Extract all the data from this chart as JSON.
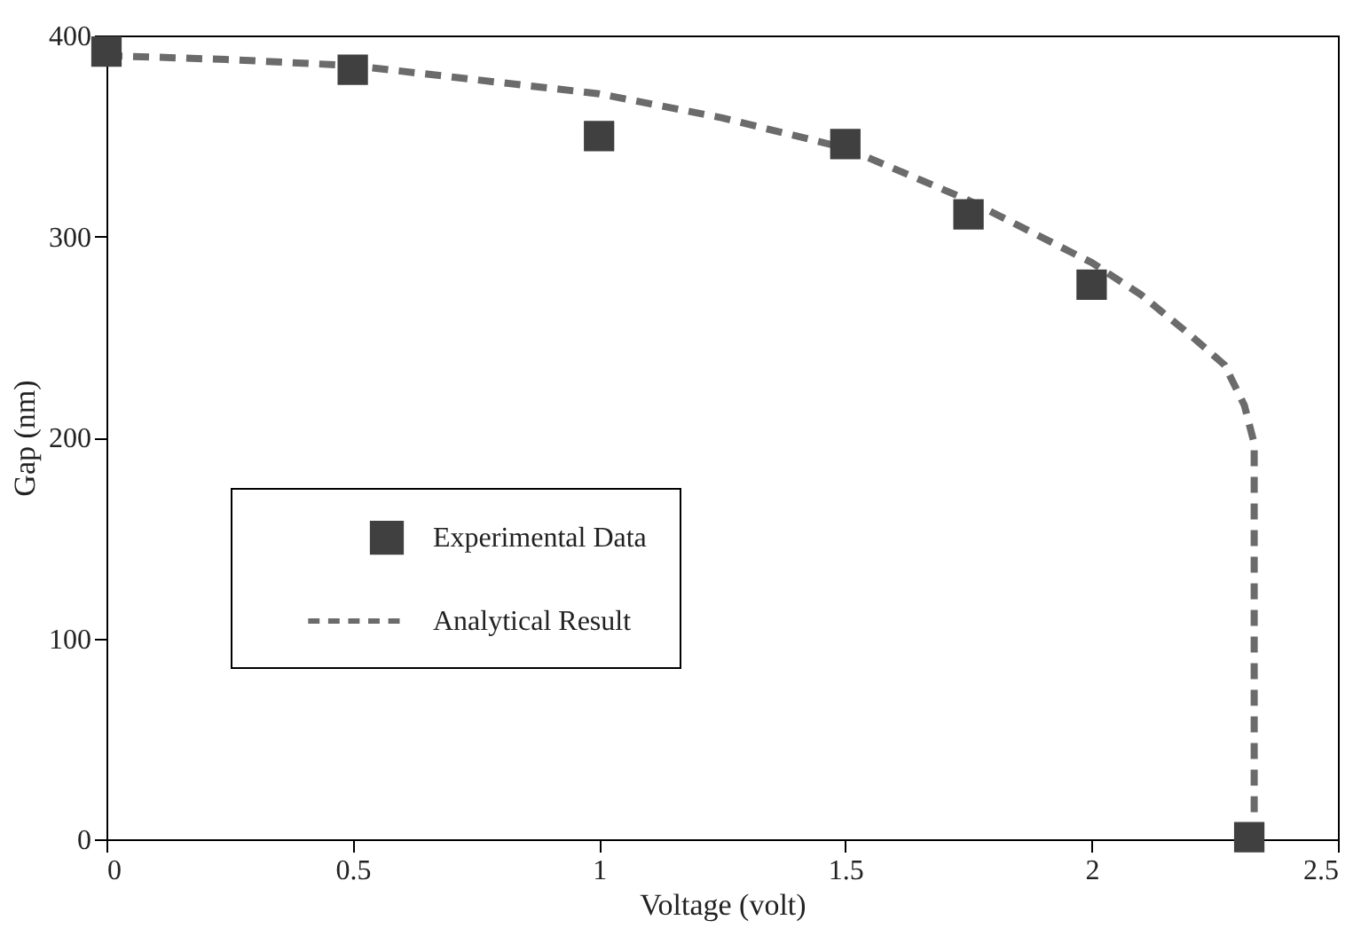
{
  "chart_data": {
    "type": "scatter",
    "xlabel": "Voltage (volt)",
    "ylabel": "Gap (nm)",
    "xlim": [
      0,
      2.5
    ],
    "ylim": [
      0,
      400
    ],
    "xticks": [
      0,
      0.5,
      1,
      1.5,
      2,
      2.5
    ],
    "yticks": [
      0,
      100,
      200,
      300,
      400
    ],
    "grid": false,
    "legend": "left",
    "series": [
      {
        "name": "Experimental Data",
        "marker": "square",
        "color": "#404040",
        "x": [
          0,
          0.5,
          1,
          1.5,
          1.75,
          2,
          2.32
        ],
        "values": [
          392,
          383,
          350,
          346,
          311,
          276,
          1
        ]
      },
      {
        "name": "Analytical Result",
        "type": "line",
        "line_style": "dashed",
        "marker": "none",
        "color": "#6b6b6b",
        "x": [
          0,
          0.25,
          0.5,
          0.75,
          1,
          1.25,
          1.5,
          1.75,
          2,
          2.1,
          2.2,
          2.27,
          2.31,
          2.33,
          2.33
        ],
        "values": [
          390,
          388,
          385,
          378,
          371,
          359,
          344,
          318,
          287,
          271,
          251,
          236,
          216,
          197,
          0
        ]
      }
    ]
  }
}
